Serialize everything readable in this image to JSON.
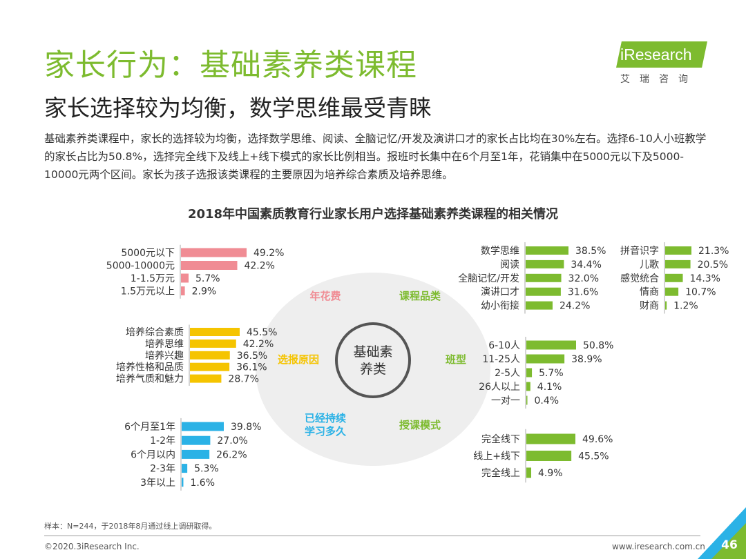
{
  "header": {
    "title": "家长行为：基础素养类课程",
    "subtitle": "家长选择较为均衡，数学思维最受青睐",
    "intro": "基础素养类课程中，家长的选择较为均衡，选择数学思维、阅读、全脑记忆/开发及演讲口才的家长占比均在30%左右。选择6-10人小班教学的家长占比为50.8%，选择完全线下及线上+线下模式的家长比例相当。报班时长集中在6个月至1年，花销集中在5000元以下及5000-10000元两个区间。家长为孩子选报该类课程的主要原因为培养综合素质及培养思维。"
  },
  "logo": {
    "text": "iResearch",
    "cn": "艾瑞咨询"
  },
  "colors": {
    "green": "#7dbb2f",
    "pink": "#f08c94",
    "yellow": "#f5c400",
    "blue": "#2bb2e6",
    "circle": "#eeeeee"
  },
  "chart_data": {
    "title": "2018年中国素质教育行业家长用户选择基础素养类课程的相关情况",
    "center_label": [
      "基础素",
      "养类"
    ],
    "ring_labels": {
      "spend": "年花费",
      "category": "课程品类",
      "reason": "选报原因",
      "class": "班型",
      "duration": [
        "已经持续",
        "学习多久"
      ],
      "mode": "授课模式"
    },
    "panels": [
      {
        "id": "spend",
        "type": "bar",
        "color": "#f08c94",
        "max": 100,
        "showValues": true,
        "categories": [
          "5000元以下",
          "5000-10000元",
          "1-1.5万元",
          "1.5万元以上"
        ],
        "values": [
          49.2,
          42.2,
          5.7,
          2.9
        ]
      },
      {
        "id": "reason",
        "type": "bar",
        "color": "#f5c400",
        "max": 100,
        "showValues": true,
        "categories": [
          "培养综合素质",
          "培养思维",
          "培养兴趣",
          "培养性格和品质",
          "培养气质和魅力"
        ],
        "values": [
          45.5,
          42.2,
          36.5,
          36.1,
          28.7
        ]
      },
      {
        "id": "duration",
        "type": "bar",
        "color": "#2bb2e6",
        "max": 100,
        "showValues": true,
        "categories": [
          "6个月至1年",
          "1-2年",
          "6个月以内",
          "2-3年",
          "3年以上"
        ],
        "values": [
          39.8,
          27.0,
          26.2,
          5.3,
          1.6
        ]
      },
      {
        "id": "category1",
        "type": "bar",
        "color": "#7dbb2f",
        "max": 100,
        "showValues": true,
        "categories": [
          "数学思维",
          "阅读",
          "全脑记忆/开发",
          "演讲口才",
          "幼小衔接"
        ],
        "values": [
          38.5,
          34.4,
          32.0,
          31.6,
          24.2
        ]
      },
      {
        "id": "category2",
        "type": "bar",
        "color": "#7dbb2f",
        "max": 100,
        "showValues": true,
        "categories": [
          "拼音识字",
          "儿歌",
          "感觉统合",
          "情商",
          "财商"
        ],
        "values": [
          21.3,
          20.5,
          14.3,
          10.7,
          1.2
        ]
      },
      {
        "id": "class",
        "type": "bar",
        "color": "#7dbb2f",
        "max": 100,
        "showValues": true,
        "categories": [
          "6-10人",
          "11-25人",
          "2-5人",
          "26人以上",
          "一对一"
        ],
        "values": [
          50.8,
          38.9,
          5.7,
          4.1,
          0.4
        ]
      },
      {
        "id": "mode",
        "type": "bar",
        "color": "#7dbb2f",
        "max": 100,
        "showValues": true,
        "categories": [
          "完全线下",
          "线上+线下",
          "完全线上"
        ],
        "values": [
          49.6,
          45.5,
          4.9
        ]
      }
    ]
  },
  "footer": {
    "note": "样本：N=244，于2018年8月通过线上调研取得。",
    "copyright": "©2020.3iResearch Inc.",
    "website": "www.iresearch.com.cn",
    "page": "46"
  }
}
